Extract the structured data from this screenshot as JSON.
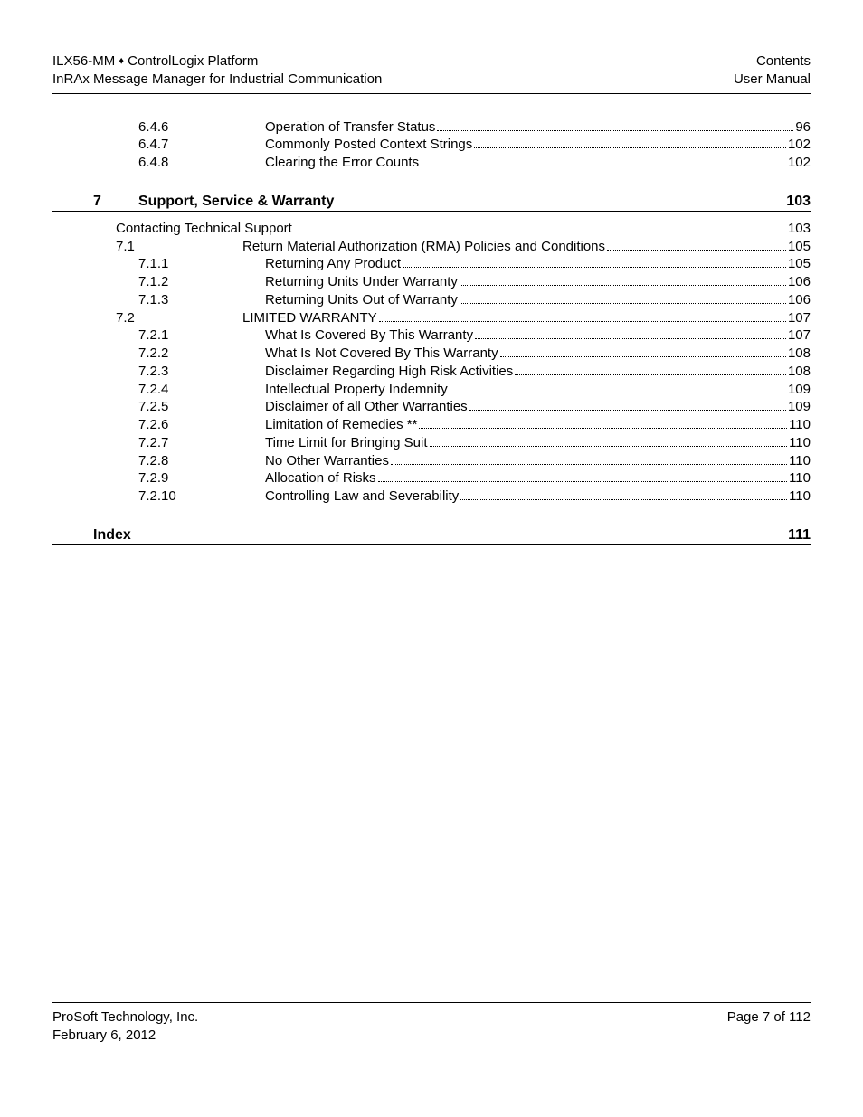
{
  "header": {
    "left_line1_a": "ILX56-MM ",
    "left_line1_b": " ControlLogix Platform",
    "left_line2": "InRAx Message Manager for Industrial Communication",
    "right_line1": "Contents",
    "right_line2": "User Manual",
    "diamond": "♦"
  },
  "pre_entries": [
    {
      "num": "6.4.6",
      "title": "Operation of Transfer Status",
      "page": "96",
      "indent": 2
    },
    {
      "num": "6.4.7",
      "title": "Commonly Posted Context Strings",
      "page": "102",
      "indent": 2
    },
    {
      "num": "6.4.8",
      "title": "Clearing the Error Counts",
      "page": "102",
      "indent": 2
    }
  ],
  "section7": {
    "num": "7",
    "title": "Support, Service & Warranty",
    "page": "103"
  },
  "section7_entries": [
    {
      "num": "",
      "title": "Contacting Technical Support",
      "page": "103",
      "indent": 0,
      "nonum": true
    },
    {
      "num": "7.1",
      "title": "Return Material Authorization (RMA) Policies and Conditions",
      "page": "105",
      "indent": 1
    },
    {
      "num": "7.1.1",
      "title": "Returning Any Product",
      "page": "105",
      "indent": 2
    },
    {
      "num": "7.1.2",
      "title": "Returning Units Under Warranty",
      "page": "106",
      "indent": 2
    },
    {
      "num": "7.1.3",
      "title": "Returning Units Out of Warranty",
      "page": "106",
      "indent": 2
    },
    {
      "num": "7.2",
      "title": "LIMITED WARRANTY",
      "page": "107",
      "indent": 1
    },
    {
      "num": "7.2.1",
      "title": "What Is Covered By This Warranty",
      "page": "107",
      "indent": 2
    },
    {
      "num": "7.2.2",
      "title": "What Is Not Covered By This Warranty",
      "page": "108",
      "indent": 2
    },
    {
      "num": "7.2.3",
      "title": "Disclaimer Regarding High Risk Activities",
      "page": "108",
      "indent": 2
    },
    {
      "num": "7.2.4",
      "title": "Intellectual Property Indemnity",
      "page": "109",
      "indent": 2
    },
    {
      "num": "7.2.5",
      "title": "Disclaimer of all Other Warranties",
      "page": "109",
      "indent": 2
    },
    {
      "num": "7.2.6",
      "title": "Limitation of Remedies **",
      "page": "110",
      "indent": 2
    },
    {
      "num": "7.2.7",
      "title": "Time Limit for Bringing Suit",
      "page": "110",
      "indent": 2
    },
    {
      "num": "7.2.8",
      "title": "No Other Warranties",
      "page": "110",
      "indent": 2
    },
    {
      "num": "7.2.9",
      "title": "Allocation of Risks",
      "page": "110",
      "indent": 2
    },
    {
      "num": "7.2.10",
      "title": "Controlling Law and Severability",
      "page": "110",
      "indent": 2
    }
  ],
  "index": {
    "title": "Index",
    "page": "111"
  },
  "footer": {
    "left_line1": "ProSoft Technology, Inc.",
    "left_line2": "February 6, 2012",
    "right_line1": "Page 7 of 112"
  }
}
